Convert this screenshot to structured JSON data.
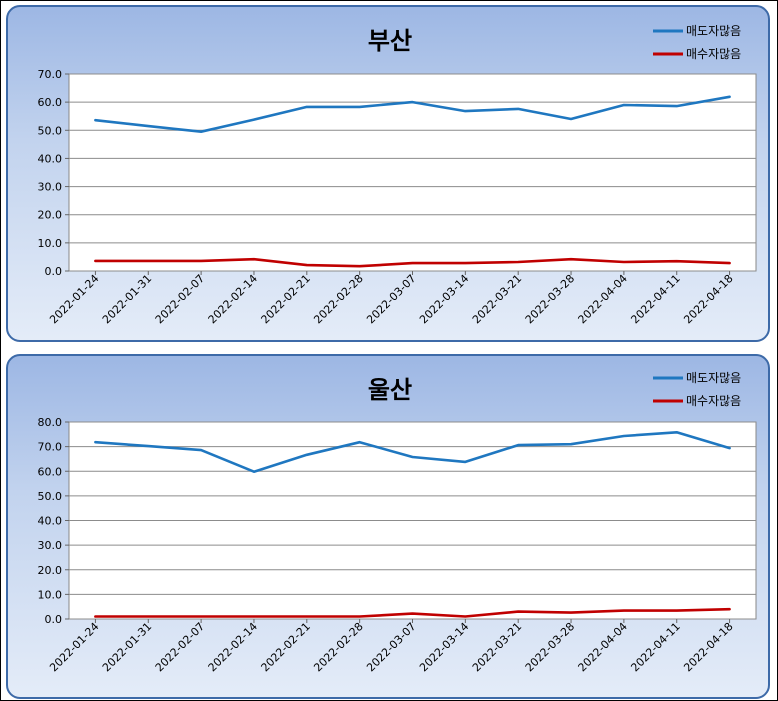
{
  "chart_data": [
    {
      "type": "line",
      "title": "부산",
      "x": [
        "2022-01-24",
        "2022-01-31",
        "2022-02-07",
        "2022-02-14",
        "2022-02-21",
        "2022-02-28",
        "2022-03-07",
        "2022-03-14",
        "2022-03-21",
        "2022-03-28",
        "2022-04-04",
        "2022-04-11",
        "2022-04-18"
      ],
      "yticks": [
        "0.0",
        "10.0",
        "20.0",
        "30.0",
        "40.0",
        "50.0",
        "60.0",
        "70.0"
      ],
      "ylim": [
        0,
        70
      ],
      "grid": "horizontal",
      "legend_position": "top-right",
      "series": [
        {
          "name": "매도자많음",
          "color": "#1f77c0",
          "values": [
            53.6,
            51.5,
            49.5,
            53.8,
            58.3,
            58.3,
            60.0,
            56.8,
            57.6,
            54.0,
            59.0,
            58.6,
            61.9
          ]
        },
        {
          "name": "매수자많음",
          "color": "#c00000",
          "values": [
            3.6,
            3.6,
            3.6,
            4.2,
            2.1,
            1.7,
            2.8,
            2.8,
            3.2,
            4.2,
            3.2,
            3.5,
            2.8
          ]
        }
      ]
    },
    {
      "type": "line",
      "title": "울산",
      "x": [
        "2022-01-24",
        "2022-01-31",
        "2022-02-07",
        "2022-02-14",
        "2022-02-21",
        "2022-02-28",
        "2022-03-07",
        "2022-03-14",
        "2022-03-21",
        "2022-03-28",
        "2022-04-04",
        "2022-04-11",
        "2022-04-18"
      ],
      "yticks": [
        "0.0",
        "10.0",
        "20.0",
        "30.0",
        "40.0",
        "50.0",
        "60.0",
        "70.0",
        "80.0"
      ],
      "ylim": [
        0,
        80
      ],
      "grid": "horizontal",
      "legend_position": "top-right",
      "series": [
        {
          "name": "매도자많음",
          "color": "#1f77c0",
          "values": [
            71.8,
            70.2,
            68.6,
            59.8,
            66.7,
            71.8,
            65.8,
            63.8,
            70.6,
            71.0,
            74.3,
            75.8,
            69.4
          ]
        },
        {
          "name": "매수자많음",
          "color": "#c00000",
          "values": [
            1.0,
            1.0,
            1.0,
            1.0,
            1.0,
            1.0,
            2.2,
            1.0,
            3.0,
            2.6,
            3.4,
            3.4,
            4.0
          ]
        }
      ]
    }
  ]
}
